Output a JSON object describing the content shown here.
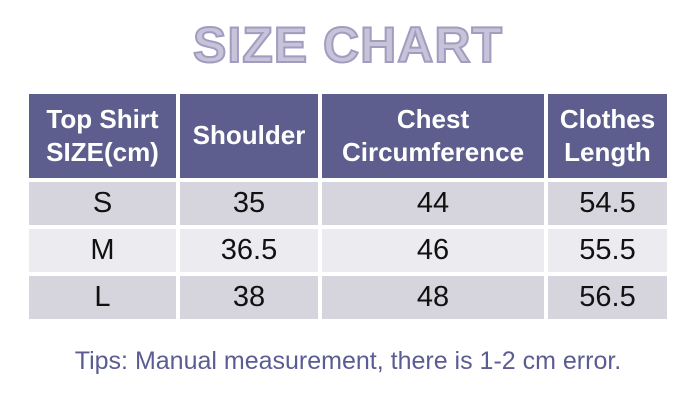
{
  "chart_data": {
    "type": "table",
    "title": "SIZE CHART",
    "columns": [
      "Top Shirt SIZE(cm)",
      "Shoulder",
      "Chest Circumference",
      "Clothes Length"
    ],
    "rows": [
      [
        "S",
        "35",
        "44",
        "54.5"
      ],
      [
        "M",
        "36.5",
        "46",
        "55.5"
      ],
      [
        "L",
        "38",
        "48",
        "56.5"
      ]
    ],
    "note": "Tips: Manual measurement, there is 1-2 cm error.",
    "layout": {
      "header_position": "top",
      "grid": "white gaps between cells",
      "row_striping": "dark-light-dark"
    }
  },
  "colors": {
    "header_bg": "#5e5e8e",
    "header_text": "#ffffff",
    "row_dark_bg": "#d6d5dd",
    "row_light_bg": "#ebebf0",
    "title_fill": "#c7c3d8",
    "title_outline": "#a29cc0",
    "tip_text": "#5b5c92",
    "cell_text": "#111111",
    "page_bg": "#ffffff"
  }
}
